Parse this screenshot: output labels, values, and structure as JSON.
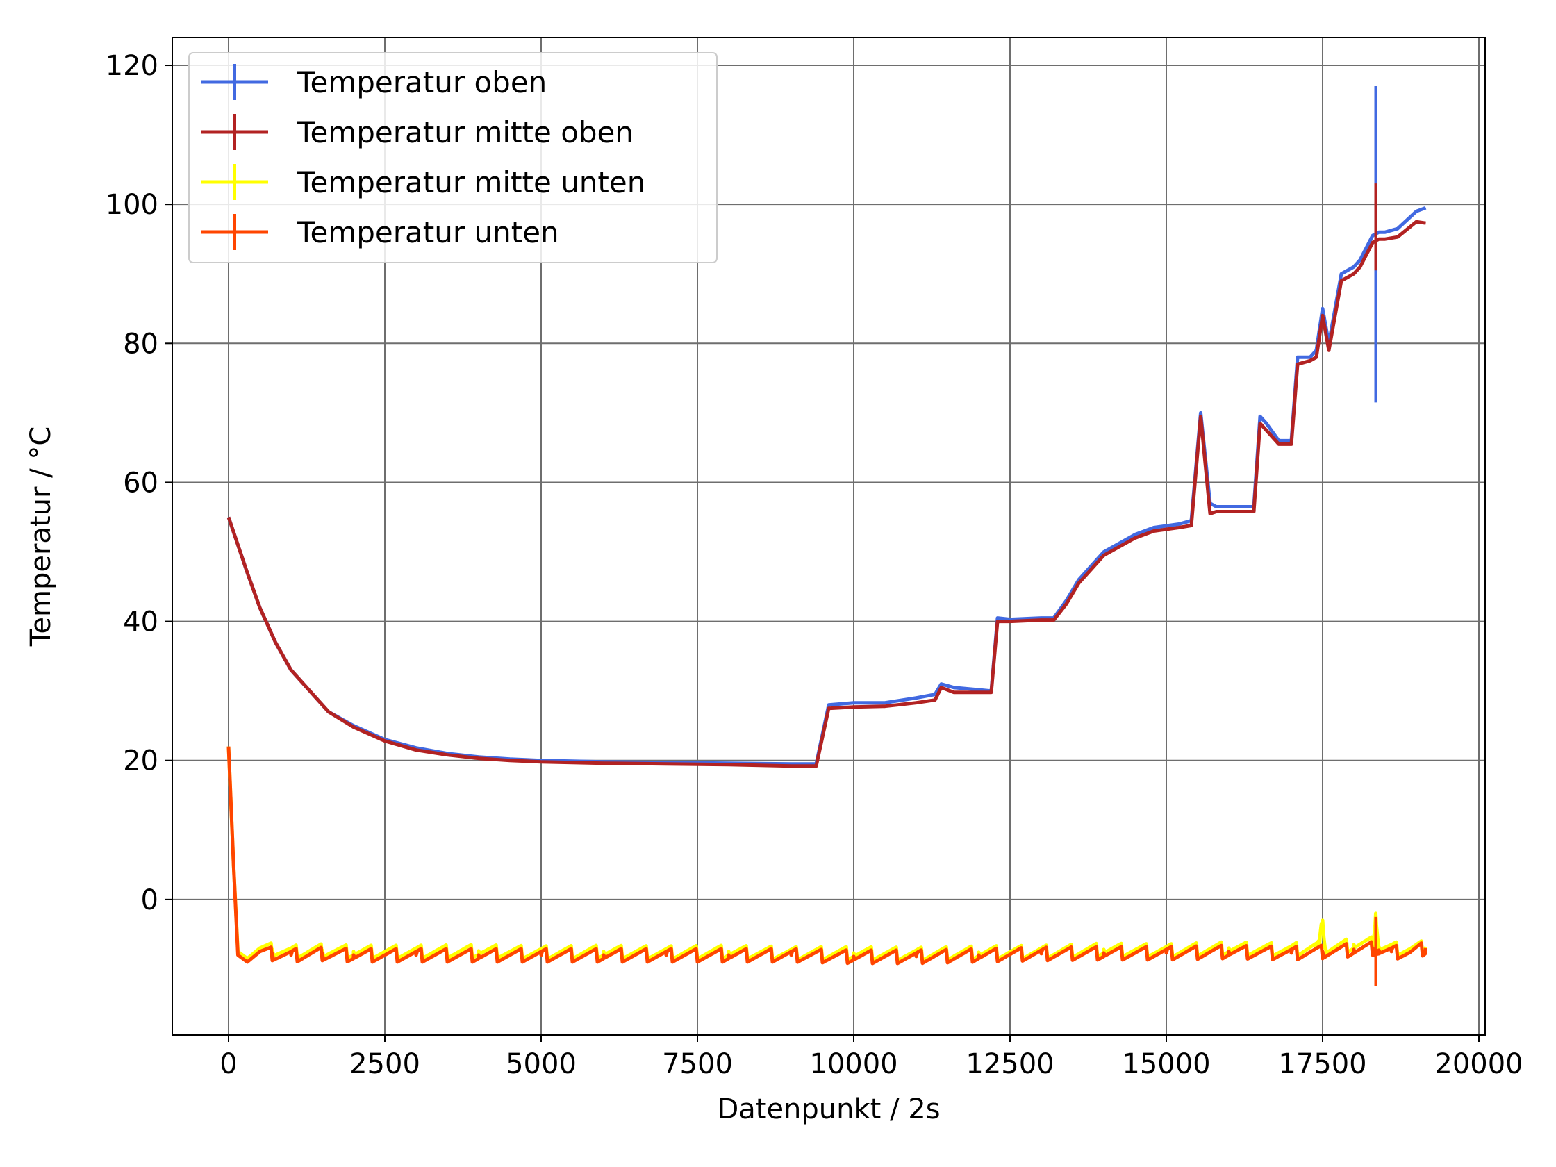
{
  "chart_data": {
    "type": "line",
    "xlabel": "Datenpunkt / 2s",
    "ylabel": "Temperatur / °C",
    "xlim": [
      -900,
      20100
    ],
    "ylim": [
      -19.5,
      124
    ],
    "x_ticks": [
      0,
      2500,
      5000,
      7500,
      10000,
      12500,
      15000,
      17500,
      20000
    ],
    "y_ticks": [
      0,
      20,
      40,
      60,
      80,
      100,
      120
    ],
    "grid": true,
    "legend_position": "top-left",
    "error_bars": true,
    "series": [
      {
        "name": "Temperatur oben",
        "color": "#4169E1",
        "x": [
          0,
          150,
          300,
          500,
          750,
          1000,
          1300,
          1600,
          2000,
          2500,
          3000,
          3500,
          4000,
          4500,
          5000,
          5500,
          6000,
          7000,
          8000,
          9000,
          9400,
          9600,
          10000,
          10500,
          11000,
          11300,
          11400,
          11600,
          12200,
          12300,
          12500,
          13000,
          13200,
          13400,
          13600,
          13800,
          14000,
          14200,
          14500,
          14800,
          15200,
          15400,
          15550,
          15700,
          15800,
          16000,
          16400,
          16500,
          16600,
          16800,
          17000,
          17100,
          17300,
          17400,
          17500,
          17600,
          17800,
          18000,
          18100,
          18300,
          18400,
          18500,
          18700,
          19000,
          19150
        ],
        "y": [
          55,
          51,
          47,
          42,
          37,
          33,
          30,
          27,
          25,
          23,
          21.8,
          21,
          20.5,
          20.2,
          20,
          19.9,
          19.8,
          19.7,
          19.6,
          19.5,
          19.5,
          28,
          28.3,
          28.3,
          29,
          29.5,
          31,
          30.5,
          30,
          40.5,
          40.3,
          40.5,
          40.5,
          43,
          46,
          48,
          50,
          51,
          52.5,
          53.5,
          54,
          54.5,
          70,
          57,
          56.5,
          56.5,
          56.5,
          69.5,
          68.5,
          66,
          66,
          78,
          78,
          79,
          85,
          80,
          90,
          91,
          92,
          95.5,
          96,
          96,
          96.5,
          99,
          99.5
        ],
        "error_bar": {
          "x": 18350,
          "low": 71.5,
          "high": 117
        }
      },
      {
        "name": "Temperatur mitte oben",
        "color": "#B22222",
        "x": [
          0,
          150,
          300,
          500,
          750,
          1000,
          1300,
          1600,
          2000,
          2500,
          3000,
          3500,
          4000,
          4500,
          5000,
          5500,
          6000,
          7000,
          8000,
          9000,
          9400,
          9600,
          10000,
          10500,
          11000,
          11300,
          11400,
          11600,
          12200,
          12300,
          12500,
          13000,
          13200,
          13400,
          13600,
          13800,
          14000,
          14200,
          14500,
          14800,
          15200,
          15400,
          15550,
          15700,
          15800,
          16000,
          16400,
          16500,
          16600,
          16800,
          17000,
          17100,
          17300,
          17400,
          17500,
          17600,
          17800,
          18000,
          18100,
          18300,
          18400,
          18500,
          18700,
          19000,
          19150
        ],
        "y": [
          55,
          51,
          47,
          42,
          37,
          33,
          30,
          27,
          24.8,
          22.8,
          21.5,
          20.8,
          20.3,
          20,
          19.8,
          19.7,
          19.6,
          19.5,
          19.4,
          19.2,
          19.2,
          27.5,
          27.7,
          27.8,
          28.3,
          28.7,
          30.5,
          29.8,
          29.8,
          40,
          40,
          40.2,
          40.2,
          42.5,
          45.5,
          47.5,
          49.5,
          50.5,
          52,
          53,
          53.5,
          53.8,
          69.5,
          55.5,
          55.8,
          55.8,
          55.8,
          68.5,
          67.5,
          65.5,
          65.5,
          77,
          77.5,
          78,
          84,
          79,
          89,
          90,
          91,
          94.5,
          95,
          95,
          95.3,
          97.5,
          97.3
        ],
        "error_bar": {
          "x": 18350,
          "low": 90.5,
          "high": 103
        }
      },
      {
        "name": "Temperatur mitte unten",
        "color": "#FFFF00",
        "x": [
          0,
          80,
          150,
          300,
          500,
          700,
          1000,
          1500,
          2000,
          3000,
          4000,
          5000,
          6000,
          7000,
          8000,
          9000,
          10000,
          11000,
          12000,
          13000,
          14000,
          15000,
          16000,
          17000,
          17400,
          17450,
          17500,
          17550,
          18000,
          18300,
          18350,
          18400,
          18600,
          18900,
          19150
        ],
        "y": [
          22,
          5,
          -7.5,
          -7.5,
          -7,
          -7.2,
          -7.5,
          -7.3,
          -7.5,
          -7.5,
          -7.4,
          -7.6,
          -7.5,
          -7.6,
          -7.5,
          -7.7,
          -7.7,
          -7.8,
          -7.6,
          -7.5,
          -7.2,
          -7.3,
          -7.0,
          -7.2,
          -6.8,
          -6.6,
          -3,
          -7,
          -6.5,
          -6.3,
          -2,
          -6.8,
          -7,
          -7.1,
          -6.8
        ],
        "sawtooth": {
          "amplitude": 2,
          "period": 400,
          "x_start": 300,
          "x_end": 19150
        }
      },
      {
        "name": "Temperatur unten",
        "color": "#FF4500",
        "x": [
          0,
          80,
          150,
          300,
          500,
          700,
          1000,
          1500,
          2000,
          3000,
          4000,
          5000,
          6000,
          7000,
          8000,
          9000,
          10000,
          11000,
          12000,
          13000,
          14000,
          15000,
          16000,
          17000,
          17500,
          18000,
          18300,
          18400,
          18600,
          18900,
          19150
        ],
        "y": [
          22,
          5,
          -8,
          -8,
          -7.5,
          -7.8,
          -8,
          -7.8,
          -8,
          -8,
          -8,
          -8,
          -8,
          -8,
          -8,
          -8,
          -8.2,
          -8.2,
          -8,
          -7.8,
          -7.7,
          -7.7,
          -7.5,
          -7.7,
          -7.5,
          -7.2,
          -7,
          -7.3,
          -7.5,
          -7.6,
          -7
        ],
        "error_bar": {
          "x": 18350,
          "low": -12.5,
          "high": -2.5
        },
        "sawtooth": {
          "amplitude": 2,
          "period": 400,
          "x_start": 300,
          "x_end": 19150
        }
      }
    ]
  }
}
